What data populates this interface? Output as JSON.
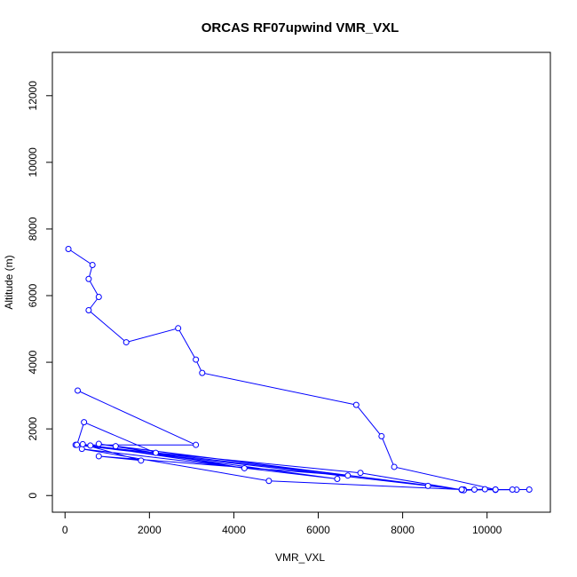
{
  "chart_data": {
    "type": "line",
    "title": "ORCAS RF07upwind VMR_VXL",
    "xlabel": "VMR_VXL",
    "ylabel": "Altitude (m)",
    "xlim": [
      -300,
      11500
    ],
    "ylim": [
      -500,
      13300
    ],
    "x_ticks": [
      0,
      2000,
      4000,
      6000,
      8000,
      10000
    ],
    "y_ticks": [
      0,
      2000,
      4000,
      6000,
      8000,
      10000,
      12000
    ],
    "x_tick_labels": [
      "0",
      "2000",
      "4000",
      "6000",
      "8000",
      "10000"
    ],
    "y_tick_labels": [
      "0",
      "2000",
      "4000",
      "6000",
      "8000",
      "10000",
      "12000"
    ],
    "grid": false,
    "series_color": "#0000ff",
    "series": [
      {
        "x": [
          80,
          650,
          560,
          800,
          560,
          1450,
          2680,
          3100,
          3250,
          6900,
          7500,
          7800,
          10200,
          9400,
          11000,
          9450,
          10700,
          9700,
          10200,
          10600,
          9950,
          9400,
          10200,
          9450,
          7000,
          250,
          8600,
          9400,
          4830,
          400,
          6450,
          600,
          6700,
          800,
          1800,
          420,
          4250,
          1200,
          9400,
          800,
          2150,
          450,
          280,
          3100,
          300
        ],
        "y": [
          7400,
          6920,
          6500,
          5960,
          5560,
          4600,
          5020,
          4080,
          3680,
          2720,
          1780,
          860,
          180,
          170,
          180,
          180,
          175,
          180,
          170,
          180,
          190,
          170,
          180,
          160,
          680,
          1520,
          290,
          180,
          440,
          1400,
          500,
          1500,
          600,
          1180,
          1050,
          1540,
          820,
          1480,
          180,
          1550,
          1280,
          2200,
          1520,
          1520,
          3150
        ]
      }
    ]
  }
}
